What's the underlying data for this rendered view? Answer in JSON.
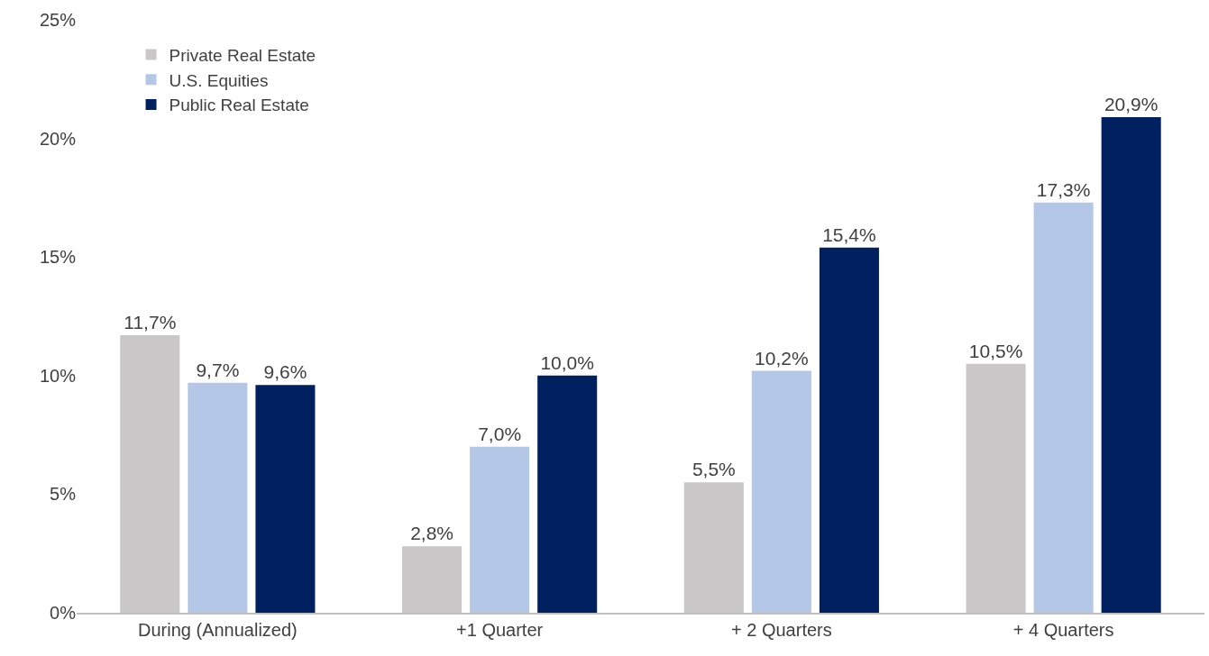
{
  "chart_data": {
    "type": "bar",
    "categories": [
      "During (Annualized)",
      "+1 Quarter",
      "+ 2 Quarters",
      "+ 4 Quarters"
    ],
    "series": [
      {
        "name": "Private Real Estate",
        "color": "#c9c7c8",
        "values": [
          11.7,
          2.8,
          5.5,
          10.5
        ],
        "value_labels": [
          "11,7%",
          "2,8%",
          "5,5%",
          "10,5%"
        ]
      },
      {
        "name": "U.S. Equities",
        "color": "#b4c7e7",
        "values": [
          9.7,
          7.0,
          10.2,
          17.3
        ],
        "value_labels": [
          "9,7%",
          "7,0%",
          "10,2%",
          "17,3%"
        ]
      },
      {
        "name": "Public Real Estate",
        "color": "#002060",
        "values": [
          9.6,
          10.0,
          15.4,
          20.9
        ],
        "value_labels": [
          "9,6%",
          "10,0%",
          "15,4%",
          "20,9%"
        ]
      }
    ],
    "ylim": [
      0,
      25
    ],
    "yticks": [
      {
        "value": 0,
        "label": "0%"
      },
      {
        "value": 5,
        "label": "5%"
      },
      {
        "value": 10,
        "label": "10%"
      },
      {
        "value": 15,
        "label": "15%"
      },
      {
        "value": 20,
        "label": "20%"
      },
      {
        "value": 25,
        "label": "25%"
      }
    ],
    "grid": false,
    "legend": "top left"
  }
}
